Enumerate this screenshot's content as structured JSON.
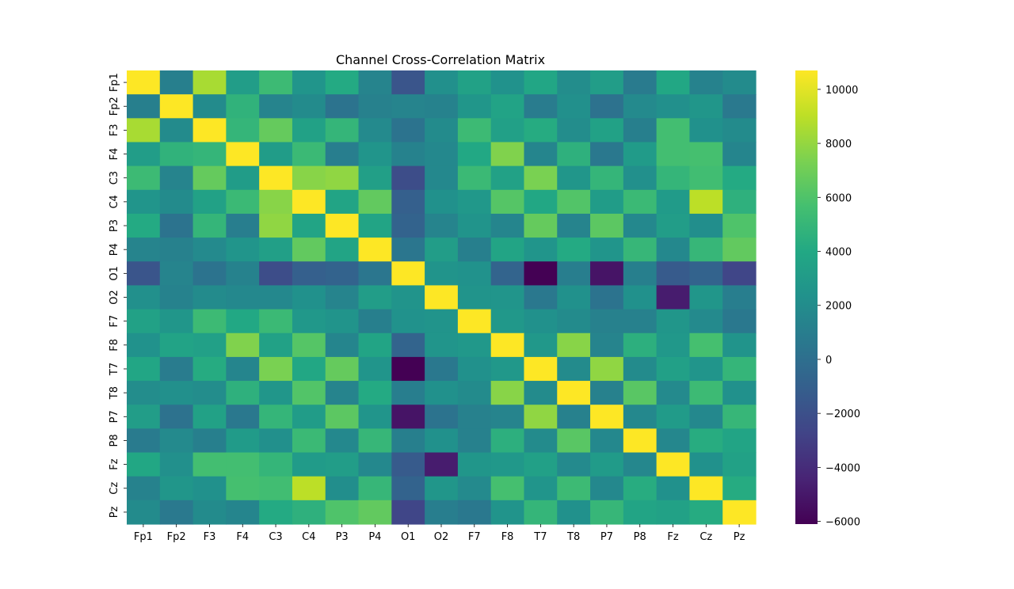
{
  "chart_data": {
    "type": "heatmap",
    "title": "Channel Cross-Correlation Matrix",
    "xlabel": "",
    "ylabel": "",
    "colormap": "viridis",
    "x_labels": [
      "Fp1",
      "Fp2",
      "F3",
      "F4",
      "C3",
      "C4",
      "P3",
      "P4",
      "O1",
      "O2",
      "F7",
      "F8",
      "T7",
      "T8",
      "P7",
      "P8",
      "Fz",
      "Cz",
      "Pz"
    ],
    "y_labels": [
      "Fp1",
      "Fp2",
      "F3",
      "F4",
      "C3",
      "C4",
      "P3",
      "P4",
      "O1",
      "O2",
      "F7",
      "F8",
      "T7",
      "T8",
      "P7",
      "P8",
      "Fz",
      "Cz",
      "Pz"
    ],
    "values": [
      [
        10700,
        1100,
        8500,
        3200,
        5300,
        2600,
        4100,
        1400,
        -1700,
        2200,
        3500,
        2400,
        3800,
        2000,
        3200,
        800,
        3900,
        1300,
        1900
      ],
      [
        1100,
        10700,
        1900,
        4700,
        1400,
        1900,
        300,
        1200,
        1400,
        1300,
        2700,
        3600,
        900,
        2200,
        200,
        1800,
        2200,
        2700,
        700
      ],
      [
        8500,
        1900,
        10700,
        4900,
        6700,
        3500,
        4900,
        1800,
        300,
        1900,
        5300,
        3400,
        4200,
        2000,
        3500,
        1100,
        5600,
        2300,
        1900
      ],
      [
        3200,
        4700,
        4900,
        10700,
        3100,
        5200,
        1000,
        2600,
        1300,
        1700,
        4000,
        7500,
        1500,
        4600,
        600,
        3000,
        5600,
        5700,
        1500
      ],
      [
        5300,
        1400,
        6700,
        3100,
        10700,
        7700,
        7900,
        3300,
        -2200,
        1700,
        5200,
        3500,
        7300,
        2700,
        4900,
        2200,
        4900,
        5500,
        4100
      ],
      [
        2600,
        1900,
        3500,
        5200,
        7700,
        10700,
        3700,
        6600,
        -1000,
        2300,
        2800,
        6200,
        3900,
        6100,
        3100,
        5200,
        3000,
        9000,
        4600
      ],
      [
        4100,
        300,
        4900,
        1000,
        7900,
        3700,
        10700,
        3700,
        -800,
        1400,
        2500,
        1500,
        6700,
        1400,
        6400,
        1700,
        3200,
        2100,
        6000
      ],
      [
        1400,
        1200,
        1800,
        2600,
        3300,
        6600,
        3700,
        10700,
        500,
        3200,
        1100,
        3700,
        2600,
        4100,
        2600,
        5000,
        1700,
        5000,
        6600
      ],
      [
        -1700,
        1400,
        300,
        1300,
        -2200,
        -1000,
        -800,
        500,
        10700,
        2500,
        2400,
        -700,
        -6100,
        1000,
        -5200,
        1100,
        -1300,
        -800,
        -2600
      ],
      [
        2200,
        1300,
        1900,
        1700,
        1700,
        2300,
        1400,
        3200,
        2500,
        10700,
        2500,
        2600,
        600,
        2300,
        300,
        2300,
        -4800,
        2700,
        1000
      ],
      [
        3500,
        2700,
        5300,
        4000,
        5200,
        2800,
        2500,
        1100,
        2400,
        2500,
        10700,
        2800,
        2300,
        1900,
        1200,
        1200,
        2700,
        1800,
        600
      ],
      [
        2400,
        3600,
        3400,
        7500,
        3500,
        6200,
        1500,
        3700,
        -700,
        2600,
        2800,
        10700,
        2800,
        7700,
        1400,
        4500,
        2800,
        5700,
        2500
      ],
      [
        3800,
        900,
        4200,
        1500,
        7300,
        3900,
        6700,
        2600,
        -6100,
        600,
        2300,
        2800,
        10700,
        1900,
        7900,
        1900,
        3400,
        2600,
        4900
      ],
      [
        2000,
        2200,
        2000,
        4600,
        2700,
        6100,
        1400,
        4100,
        1000,
        2300,
        1900,
        7700,
        1900,
        10700,
        1200,
        6300,
        1800,
        5300,
        2300
      ],
      [
        3200,
        200,
        3500,
        600,
        4900,
        3100,
        6400,
        2600,
        -5200,
        300,
        1200,
        1400,
        7900,
        1200,
        10700,
        1700,
        3000,
        1700,
        5000
      ],
      [
        800,
        1800,
        1100,
        3000,
        2200,
        5200,
        1700,
        5000,
        1100,
        2300,
        1200,
        4500,
        1900,
        6300,
        1700,
        10700,
        1600,
        4300,
        3700
      ],
      [
        3900,
        2200,
        5600,
        5600,
        4900,
        3000,
        3200,
        1700,
        -1300,
        -4800,
        2700,
        2800,
        3400,
        1800,
        3000,
        1600,
        10700,
        2300,
        3500
      ],
      [
        1300,
        2700,
        2300,
        5700,
        5500,
        9000,
        2100,
        5000,
        -800,
        2700,
        1800,
        5700,
        2600,
        5300,
        1700,
        4300,
        2300,
        10700,
        4200
      ],
      [
        1900,
        700,
        1900,
        1500,
        4100,
        4600,
        6000,
        6600,
        -2600,
        1000,
        600,
        2500,
        4900,
        2300,
        5000,
        3700,
        3500,
        4200,
        10700
      ]
    ],
    "vmin": -6100,
    "vmax": 10700,
    "colorbar_ticks": [
      10000,
      8000,
      6000,
      4000,
      2000,
      0,
      -2000,
      -4000,
      -6000
    ],
    "colorbar_tick_labels": [
      "10000",
      "8000",
      "6000",
      "4000",
      "2000",
      "0",
      "−2000",
      "−4000",
      "−6000"
    ]
  }
}
